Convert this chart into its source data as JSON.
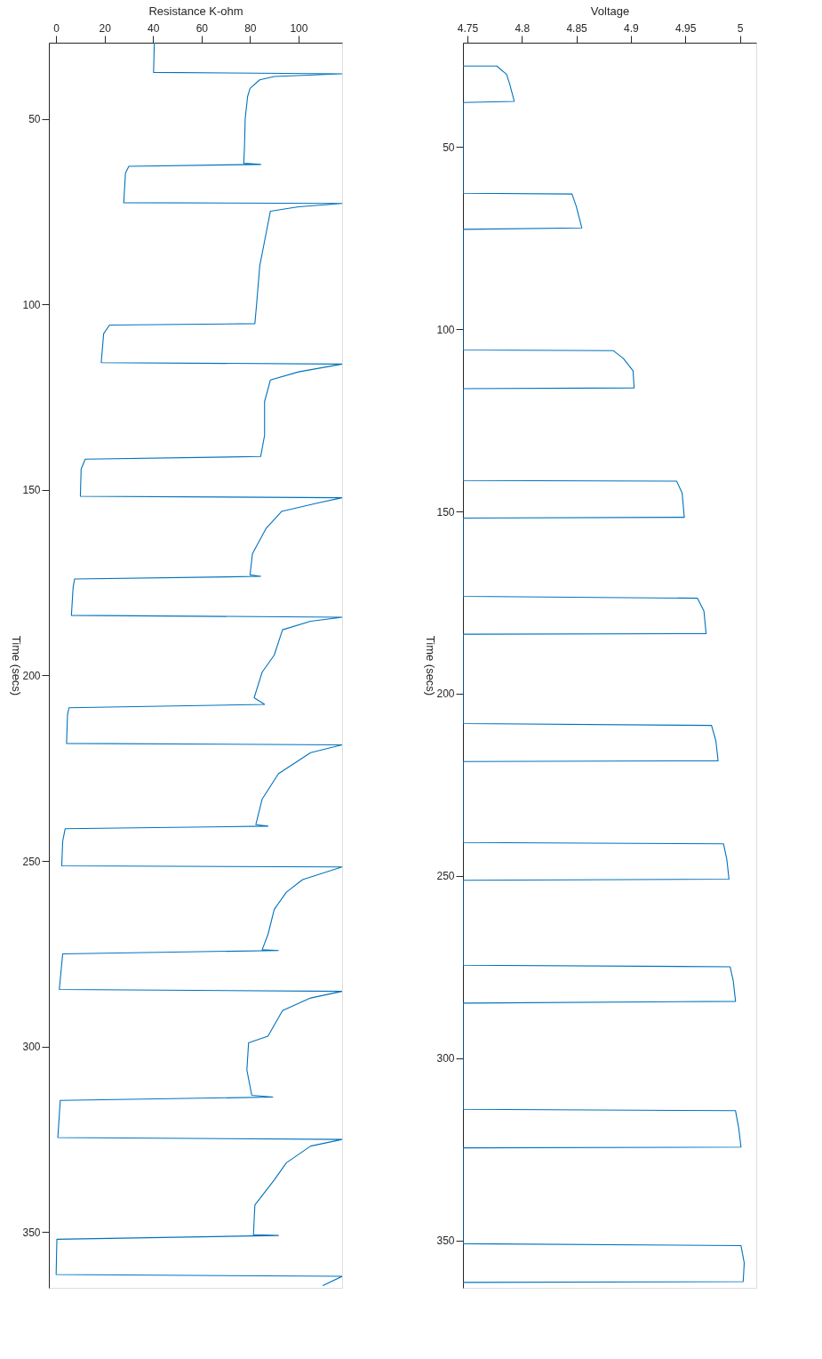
{
  "chart_data": [
    {
      "type": "line",
      "xlabel": "Resistance K-ohm",
      "ylabel": "Time (secs)",
      "ylim": [
        365,
        29.5
      ],
      "yticks": [
        50,
        100,
        150,
        200,
        250,
        300,
        350
      ],
      "xlim": [
        -3,
        118
      ],
      "xticks": [
        0,
        20,
        40,
        60,
        80,
        100
      ],
      "grid": false,
      "series": [
        {
          "color": "#0072bd",
          "values": [
            29.5,
            37.5,
            37.9,
            38.6,
            39.5,
            41.8,
            44,
            50,
            57.8,
            62,
            62.3,
            62.8,
            64.6,
            72.6,
            72.8,
            73.7,
            74.9,
            80.6,
            89.7,
            100,
            105.2,
            105.6,
            107.9,
            115.7,
            116.1,
            118.2,
            120.4,
            126.2,
            135.3,
            141,
            141.7,
            144.4,
            151.7,
            152.1,
            153.5,
            155.8,
            160.3,
            167.2,
            172.9,
            173.3,
            174,
            176.3,
            183.8,
            184.3,
            185.4,
            187.7,
            194.5,
            199.1,
            206,
            207.8,
            208.7,
            210.5,
            218.3,
            218.7,
            220.8,
            226.5,
            233.3,
            240.2,
            240.6,
            241.3,
            244.7,
            251.3,
            251.6,
            255,
            258.4,
            263,
            269.8,
            273.9,
            274.1,
            275,
            284.6,
            285.1,
            286.9,
            290.3,
            297.2,
            299,
            306.3,
            313.1,
            313.6,
            314.5,
            324.5,
            325,
            326.8,
            331.3,
            335.9,
            342.7,
            350.7,
            350.9,
            351.9,
            361.4,
            361.9,
            364.4
          ],
          "x": [
            40.5,
            40.2,
            118,
            90,
            84,
            80,
            79,
            78,
            77.7,
            77.4,
            84.4,
            30,
            28.6,
            27.9,
            118,
            100,
            88.4,
            86.7,
            84,
            82.7,
            82,
            22,
            19.6,
            18.6,
            118,
            100,
            88.4,
            86,
            86,
            84.4,
            12,
            10.3,
            10,
            118,
            108,
            93,
            86.7,
            81,
            80,
            84.4,
            7.6,
            7,
            6.3,
            118,
            105,
            93.4,
            90,
            85,
            81.7,
            86,
            5.3,
            4.7,
            4.3,
            118,
            105,
            91.7,
            85,
            82.4,
            87.4,
            3.7,
            2.7,
            2.3,
            118,
            101.7,
            95,
            90,
            87.4,
            85,
            91.7,
            2.7,
            1.3,
            118,
            105,
            93.4,
            87.4,
            79.4,
            78.7,
            80.7,
            89.4,
            1.7,
            0.7,
            118,
            105,
            95,
            90,
            82,
            81.4,
            91.7,
            0.3,
            0,
            118,
            110
          ]
        }
      ]
    },
    {
      "type": "line",
      "xlabel": "Voltage",
      "ylabel": "Time (secs)",
      "ylim": [
        363,
        21.4
      ],
      "yticks": [
        50,
        100,
        150,
        200,
        250,
        300,
        350
      ],
      "xlim": [
        4.746,
        5.015
      ],
      "xticks": [
        4.75,
        4.8,
        4.85,
        4.9,
        4.95,
        5
      ],
      "grid": false,
      "series": [
        {
          "color": "#0072bd",
          "values": [
            27.8,
            27.8,
            30.1,
            32.9,
            37.5,
            37.8,
            62.7,
            62.9,
            66.4,
            72.2,
            72.6,
            105.7,
            105.9,
            108,
            111.4,
            116.1,
            116.3,
            141.5,
            141.7,
            144.9,
            151.6,
            151.8,
            173.3,
            173.8,
            177.3,
            183.5,
            183.7,
            208.2,
            208.7,
            213,
            218.4,
            218.6,
            240.8,
            241.2,
            245.4,
            250.9,
            251.2,
            274.5,
            274.9,
            278.9,
            284.4,
            284.9,
            314,
            314.4,
            319.3,
            324.4,
            324.6,
            350.9,
            351.4,
            356.2,
            361.3,
            361.5
          ],
          "x": [
            4.746,
            4.777,
            4.786,
            4.789,
            4.793,
            4.746,
            4.746,
            4.846,
            4.85,
            4.855,
            4.746,
            4.746,
            4.884,
            4.893,
            4.902,
            4.903,
            4.746,
            4.746,
            4.942,
            4.947,
            4.949,
            4.746,
            4.746,
            4.961,
            4.967,
            4.969,
            4.746,
            4.746,
            4.974,
            4.978,
            4.98,
            4.746,
            4.746,
            4.985,
            4.988,
            4.99,
            4.746,
            4.746,
            4.991,
            4.994,
            4.996,
            4.746,
            4.746,
            4.996,
            4.999,
            5.001,
            4.746,
            4.746,
            5.001,
            5.004,
            5.003,
            4.746
          ]
        }
      ]
    }
  ]
}
